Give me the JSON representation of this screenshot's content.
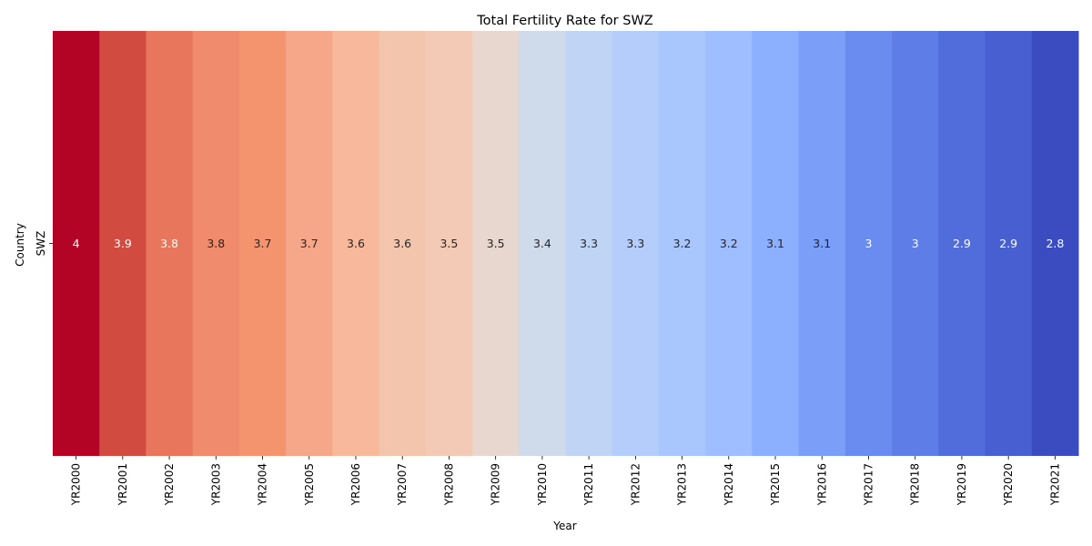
{
  "chart_data": {
    "type": "heatmap",
    "title": "Total Fertility Rate for SWZ",
    "xlabel": "Year",
    "ylabel": "Country",
    "rows": [
      "SWZ"
    ],
    "categories": [
      "YR2000",
      "YR2001",
      "YR2002",
      "YR2003",
      "YR2004",
      "YR2005",
      "YR2006",
      "YR2007",
      "YR2008",
      "YR2009",
      "YR2010",
      "YR2011",
      "YR2012",
      "YR2013",
      "YR2014",
      "YR2015",
      "YR2016",
      "YR2017",
      "YR2018",
      "YR2019",
      "YR2020",
      "YR2021"
    ],
    "values": [
      [
        4,
        3.9,
        3.8,
        3.8,
        3.7,
        3.7,
        3.6,
        3.6,
        3.5,
        3.5,
        3.4,
        3.3,
        3.3,
        3.2,
        3.2,
        3.1,
        3.1,
        3,
        3,
        2.9,
        2.9,
        2.8
      ]
    ],
    "colors": [
      "#b40426",
      "#d24b40",
      "#e8765c",
      "#f08b6e",
      "#f3946f",
      "#f7a789",
      "#f7b89c",
      "#f4c5ad",
      "#f2cab5",
      "#e7d7ce",
      "#cfdaea",
      "#c0d4f5",
      "#b5cdfa",
      "#aac7fd",
      "#9ebeff",
      "#8caffe",
      "#7b9ff9",
      "#6a8bef",
      "#5e7de7",
      "#516ddb",
      "#485fd1",
      "#3b4cc0"
    ],
    "colormap": "coolwarm",
    "grid": false,
    "legend": "none"
  }
}
